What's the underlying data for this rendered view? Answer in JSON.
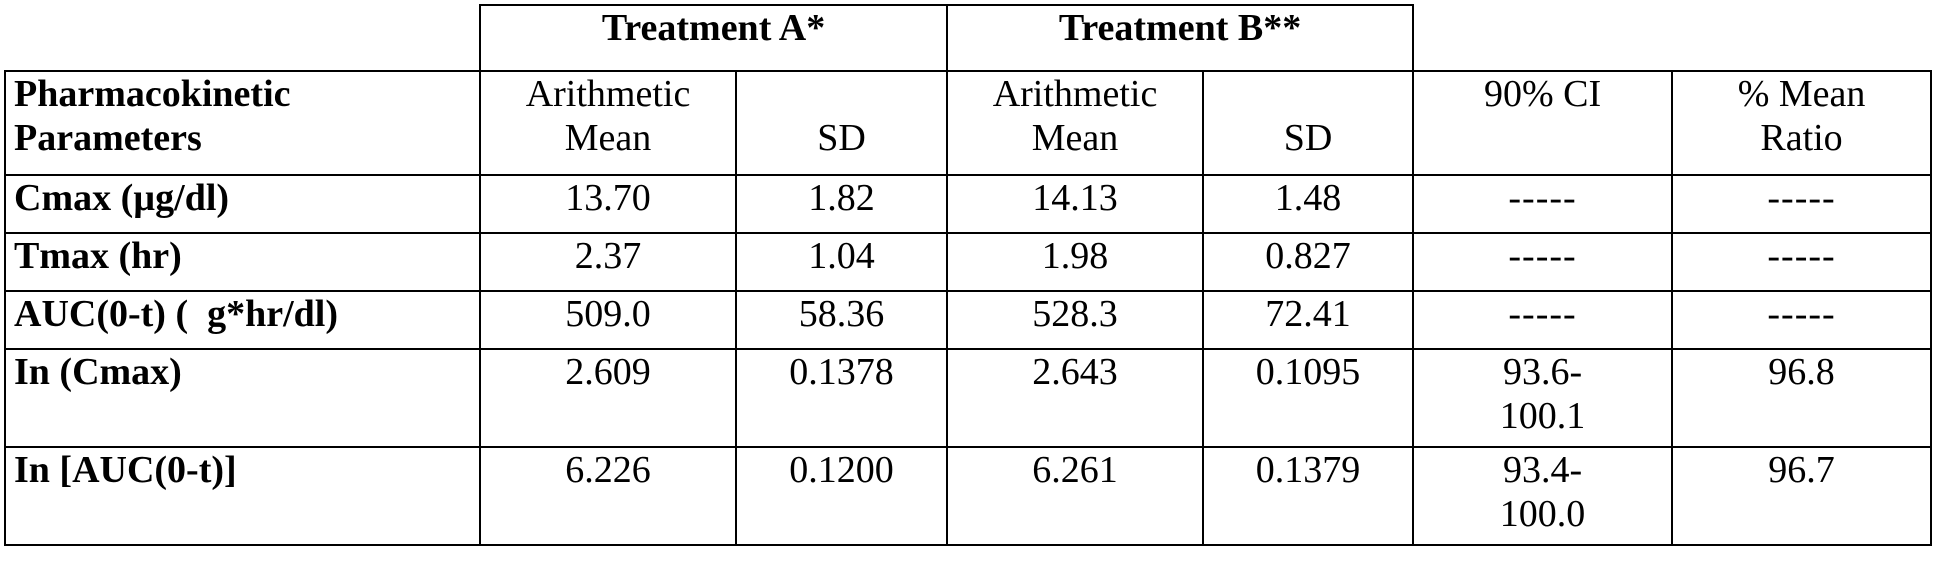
{
  "table": {
    "group_headers": {
      "treatment_a": "Treatment A*",
      "treatment_b": "Treatment B**"
    },
    "column_headers": {
      "parameters_line1": "Pharmacokinetic",
      "parameters_line2": "Parameters",
      "a_mean_line1": "Arithmetic",
      "a_mean_line2": "Mean",
      "a_sd": "SD",
      "b_mean_line1": "Arithmetic",
      "b_mean_line2": "Mean",
      "b_sd": "SD",
      "ci": "90% CI",
      "ratio_line1": "% Mean",
      "ratio_line2": "Ratio"
    },
    "rows": [
      {
        "param": "Cmax (µg/dl)",
        "a_mean": "13.70",
        "a_sd": "1.82",
        "b_mean": "14.13",
        "b_sd": "1.48",
        "ci_line1": "-----",
        "ci_line2": "",
        "ratio": "-----"
      },
      {
        "param": "Tmax (hr)",
        "a_mean": "2.37",
        "a_sd": "1.04",
        "b_mean": "1.98",
        "b_sd": "0.827",
        "ci_line1": "-----",
        "ci_line2": "",
        "ratio": "-----"
      },
      {
        "param": "AUC(0-t) (  g*hr/dl)",
        "a_mean": "509.0",
        "a_sd": "58.36",
        "b_mean": "528.3",
        "b_sd": "72.41",
        "ci_line1": "-----",
        "ci_line2": "",
        "ratio": "-----"
      },
      {
        "param": "In (Cmax)",
        "a_mean": "2.609",
        "a_sd": "0.1378",
        "b_mean": "2.643",
        "b_sd": "0.1095",
        "ci_line1": "93.6-",
        "ci_line2": "100.1",
        "ratio": "96.8"
      },
      {
        "param": "In [AUC(0-t)]",
        "a_mean": "6.226",
        "a_sd": "0.1200",
        "b_mean": "6.261",
        "b_sd": "0.1379",
        "ci_line1": "93.4-",
        "ci_line2": "100.0",
        "ratio": "96.7"
      }
    ]
  }
}
